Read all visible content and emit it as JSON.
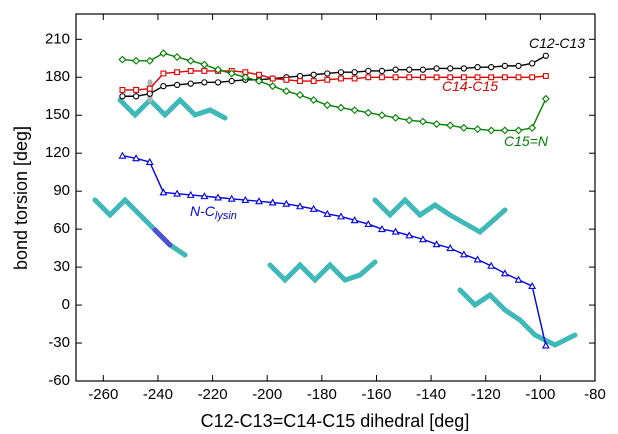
{
  "chart_data": {
    "type": "line",
    "xlabel": "C12-C13=C14-C15 dihedral [deg]",
    "ylabel": "bond torsion [deg]",
    "x": [
      -253,
      -248,
      -243,
      -238,
      -233,
      -228,
      -223,
      -218,
      -213,
      -208,
      -203,
      -198,
      -193,
      -188,
      -183,
      -178,
      -173,
      -168,
      -163,
      -158,
      -153,
      -148,
      -143,
      -138,
      -133,
      -128,
      -123,
      -118,
      -113,
      -108,
      -103,
      -98
    ],
    "xlim": [
      -270,
      -80
    ],
    "xticks": [
      -260,
      -240,
      -220,
      -200,
      -180,
      -160,
      -140,
      -120,
      -100,
      -80
    ],
    "ylim": [
      -60,
      230
    ],
    "yticks": [
      -60,
      -30,
      0,
      30,
      60,
      90,
      120,
      150,
      180,
      210
    ],
    "series": [
      {
        "name": "C12-C13",
        "color": "#000000",
        "marker": "circle",
        "values": [
          165,
          165,
          167,
          173,
          174,
          175,
          176,
          176,
          177,
          178,
          178,
          179,
          180,
          181,
          182,
          183,
          184,
          184,
          185,
          185,
          186,
          186,
          186,
          187,
          187,
          187,
          188,
          188,
          189,
          189,
          191,
          197
        ]
      },
      {
        "name": "C14-C15",
        "color": "#e00000",
        "marker": "square",
        "values": [
          170,
          170,
          171,
          183,
          184,
          185,
          185,
          185,
          185,
          184,
          182,
          179,
          178,
          177,
          177,
          178,
          179,
          179,
          180,
          180,
          180,
          180,
          180,
          180,
          180,
          180,
          180,
          180,
          180,
          180,
          180,
          181
        ]
      },
      {
        "name": "C15=N",
        "color": "#008000",
        "marker": "diamond",
        "values": [
          194,
          193,
          193,
          199,
          196,
          193,
          190,
          186,
          183,
          180,
          177,
          173,
          169,
          166,
          162,
          158,
          156,
          154,
          152,
          150,
          148,
          146,
          145,
          143,
          142,
          140,
          139,
          138,
          138,
          138,
          140,
          163
        ]
      },
      {
        "name": "N-C",
        "name_subscript": "lysin",
        "color": "#0000e0",
        "marker": "triangle",
        "values": [
          118,
          116,
          113,
          89,
          88,
          87,
          86,
          85,
          84,
          83,
          82,
          81,
          80,
          78,
          76,
          72,
          70,
          67,
          64,
          60,
          58,
          55,
          52,
          48,
          45,
          40,
          36,
          31,
          25,
          20,
          15,
          -32
        ]
      }
    ]
  }
}
